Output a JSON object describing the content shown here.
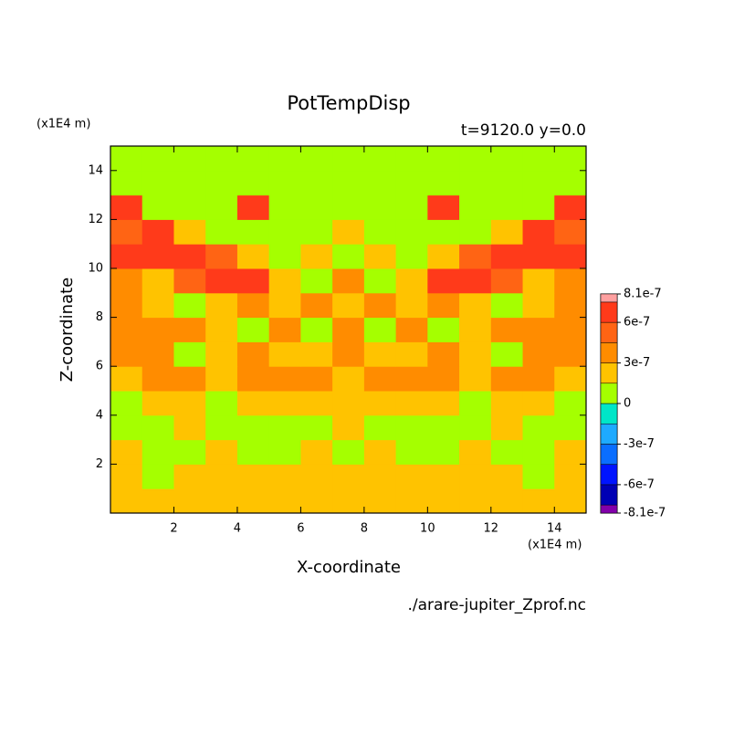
{
  "chart_data": {
    "type": "contour",
    "title": "PotTempDisp",
    "subtitle": "t=9120.0 y=0.0",
    "xlabel": "X-coordinate",
    "ylabel": "Z-coordinate",
    "x_unit": "(x1E4 m)",
    "y_unit": "(x1E4 m)",
    "source": "./arare-jupiter_Zprof.nc",
    "xlim": [
      0,
      15
    ],
    "ylim": [
      0,
      15
    ],
    "xticks": [
      2,
      4,
      6,
      8,
      10,
      12,
      14
    ],
    "yticks": [
      2,
      4,
      6,
      8,
      10,
      12,
      14
    ],
    "x": [
      0.5,
      1.5,
      2.5,
      3.5,
      4.5,
      5.5,
      6.5,
      7.5,
      8.5,
      9.5,
      10.5,
      11.5,
      12.5,
      13.5,
      14.5
    ],
    "y": [
      0.5,
      1.5,
      2.5,
      3.5,
      4.5,
      5.5,
      6.5,
      7.5,
      8.5,
      9.5,
      10.5,
      11.5,
      12.5,
      13.5,
      14.5
    ],
    "z": [
      [
        2e-07,
        2e-07,
        2e-07,
        2e-07,
        2e-07,
        2e-07,
        2e-07,
        2e-07,
        2e-07,
        2e-07,
        2e-07,
        2e-07,
        2e-07,
        2e-07,
        2e-07
      ],
      [
        2e-07,
        1e-07,
        2e-07,
        2e-07,
        2e-07,
        2e-07,
        2e-07,
        2e-07,
        2e-07,
        2e-07,
        2e-07,
        2e-07,
        2e-07,
        1e-07,
        2e-07
      ],
      [
        2e-07,
        1e-07,
        1e-07,
        2e-07,
        1e-07,
        1e-07,
        2e-07,
        1e-07,
        2e-07,
        1e-07,
        1e-07,
        2e-07,
        1e-07,
        1e-07,
        2e-07
      ],
      [
        1e-07,
        1e-07,
        2e-07,
        1e-07,
        1e-07,
        1e-07,
        1e-07,
        2e-07,
        1e-07,
        1e-07,
        1e-07,
        1e-07,
        2e-07,
        1e-07,
        1e-07
      ],
      [
        1e-07,
        2e-07,
        2e-07,
        1e-07,
        2e-07,
        2e-07,
        2e-07,
        2e-07,
        2e-07,
        2e-07,
        2e-07,
        1e-07,
        2e-07,
        2e-07,
        1e-07
      ],
      [
        2e-07,
        4e-07,
        4e-07,
        2e-07,
        4e-07,
        4e-07,
        4e-07,
        2e-07,
        4e-07,
        4e-07,
        4e-07,
        2e-07,
        4e-07,
        4e-07,
        2e-07
      ],
      [
        4e-07,
        4e-07,
        1e-07,
        2e-07,
        4e-07,
        2e-07,
        2e-07,
        4e-07,
        2e-07,
        2e-07,
        4e-07,
        2e-07,
        1e-07,
        4e-07,
        4e-07
      ],
      [
        4e-07,
        4e-07,
        4e-07,
        2e-07,
        1e-07,
        4e-07,
        1e-07,
        4e-07,
        1e-07,
        4e-07,
        1e-07,
        2e-07,
        4e-07,
        4e-07,
        4e-07
      ],
      [
        4e-07,
        2e-07,
        1e-07,
        2e-07,
        4e-07,
        2e-07,
        4e-07,
        2e-07,
        4e-07,
        2e-07,
        4e-07,
        2e-07,
        1e-07,
        2e-07,
        4e-07
      ],
      [
        4e-07,
        2e-07,
        5e-07,
        7e-07,
        7e-07,
        2e-07,
        1e-07,
        4e-07,
        1e-07,
        2e-07,
        7e-07,
        7e-07,
        5e-07,
        2e-07,
        4e-07
      ],
      [
        7e-07,
        7e-07,
        7e-07,
        5e-07,
        2e-07,
        1e-07,
        2e-07,
        1e-07,
        2e-07,
        1e-07,
        2e-07,
        5e-07,
        7e-07,
        7e-07,
        7e-07
      ],
      [
        5e-07,
        7e-07,
        2e-07,
        1e-07,
        1e-07,
        1e-07,
        1e-07,
        2e-07,
        1e-07,
        1e-07,
        1e-07,
        1e-07,
        2e-07,
        7e-07,
        5e-07
      ],
      [
        7e-07,
        1e-07,
        1e-07,
        1e-07,
        7e-07,
        1e-07,
        1e-07,
        1e-07,
        1e-07,
        1e-07,
        7e-07,
        1e-07,
        1e-07,
        1e-07,
        7e-07
      ],
      [
        1e-07,
        1e-07,
        1e-07,
        1e-07,
        1e-07,
        1e-07,
        1e-07,
        1e-07,
        1e-07,
        1e-07,
        1e-07,
        1e-07,
        1e-07,
        1e-07,
        1e-07
      ],
      [
        1e-07,
        1e-07,
        1e-07,
        1e-07,
        1e-07,
        1e-07,
        1e-07,
        1e-07,
        1e-07,
        1e-07,
        1e-07,
        1e-07,
        1e-07,
        1e-07,
        1e-07
      ]
    ],
    "colorbar": {
      "levels": [
        -8.1e-07,
        -7.5e-07,
        -6e-07,
        -4.5e-07,
        -3e-07,
        -1.5e-07,
        0,
        1.5e-07,
        3e-07,
        4.5e-07,
        6e-07,
        7.5e-07,
        8.1e-07
      ],
      "colors": [
        "#8200aa",
        "#0000b4",
        "#0014ff",
        "#0a6eff",
        "#1eaaff",
        "#00e6c8",
        "#a5ff00",
        "#ffc300",
        "#ff8c00",
        "#ff6414",
        "#ff3a1a",
        "#ffa0a0"
      ],
      "ticks": [
        -8.1e-07,
        -6e-07,
        -3e-07,
        0,
        3e-07,
        6e-07,
        8.1e-07
      ]
    }
  }
}
